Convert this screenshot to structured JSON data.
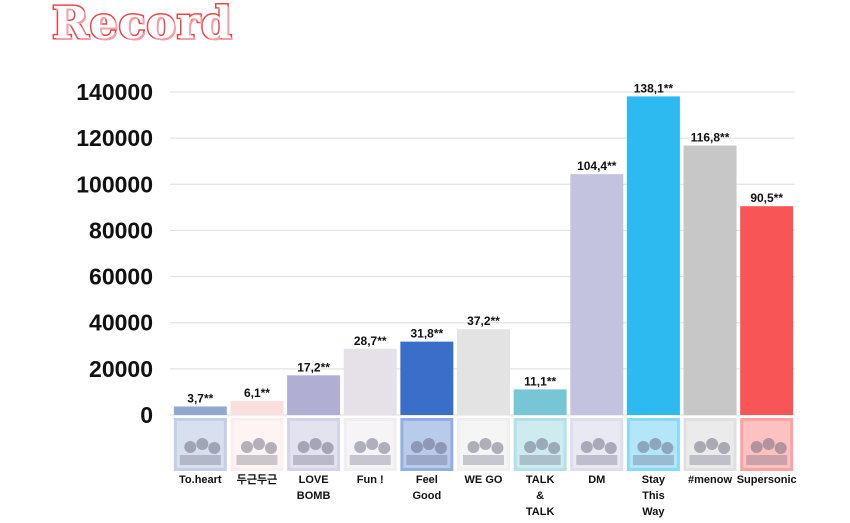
{
  "title": "Record",
  "chart_data": {
    "type": "bar",
    "title": "Record",
    "xlabel": "",
    "ylabel": "",
    "ylim": [
      0,
      140000
    ],
    "yticks": [
      0,
      20000,
      40000,
      60000,
      80000,
      100000,
      120000,
      140000
    ],
    "grid": true,
    "categories": [
      "To.heart",
      "두근두근",
      "LOVE BOMB",
      "Fun !",
      "Feel Good",
      "WE GO",
      "TALK & TALK",
      "DM",
      "Stay This Way",
      "#menow",
      "Supersonic"
    ],
    "category_lines": [
      [
        "To.heart"
      ],
      [
        "두근두근"
      ],
      [
        "LOVE",
        "BOMB"
      ],
      [
        "Fun !"
      ],
      [
        "Feel",
        "Good"
      ],
      [
        "WE GO"
      ],
      [
        "TALK",
        "&",
        "TALK"
      ],
      [
        "DM"
      ],
      [
        "Stay",
        "This",
        "Way"
      ],
      [
        "#menow"
      ],
      [
        "Supersonic"
      ]
    ],
    "values": [
      3700,
      6100,
      17200,
      28700,
      31800,
      37200,
      11100,
      104400,
      138100,
      116800,
      90500
    ],
    "data_labels": [
      "3,7**",
      "6,1**",
      "17,2**",
      "28,7**",
      "31,8**",
      "37,2**",
      "11,1**",
      "104,4**",
      "138,1**",
      "116,8**",
      "90,5**"
    ],
    "colors": [
      "#92a8d1",
      "#f9e0df",
      "#b1aed4",
      "#e6e0e9",
      "#3a6ec8",
      "#e3e3e3",
      "#77c6d5",
      "#c3c3e0",
      "#2dbaf0",
      "#c7c7c7",
      "#f85656"
    ],
    "album_art_icons": [
      "album-cover-icon-to-heart",
      "album-cover-icon-dugeun-dugeun",
      "album-cover-icon-love-bomb",
      "album-cover-icon-fun-factory",
      "album-cover-icon-feel-good",
      "album-cover-icon-we-go",
      "album-cover-icon-talk-and-talk",
      "album-cover-icon-dm",
      "album-cover-icon-stay-this-way",
      "album-cover-icon-menow",
      "album-cover-icon-supersonic"
    ]
  }
}
